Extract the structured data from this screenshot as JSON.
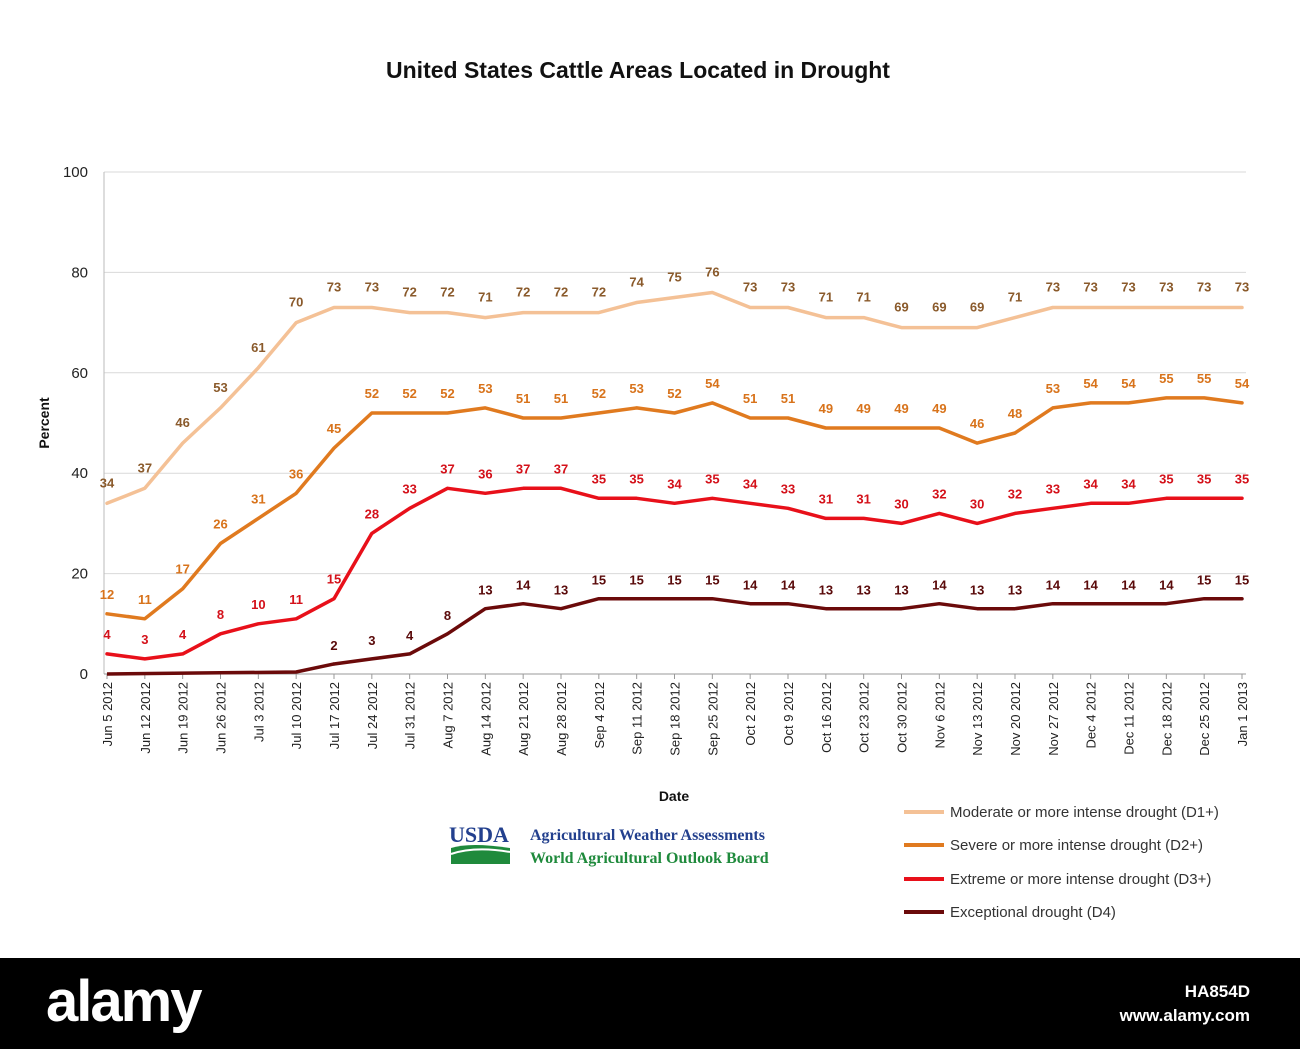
{
  "chart_data": {
    "type": "line",
    "title": "United States Cattle Areas Located in Drought",
    "xlabel": "Date",
    "ylabel": "Percent",
    "ylim": [
      0,
      100
    ],
    "yticks": [
      0,
      20,
      40,
      60,
      80,
      100
    ],
    "grid": true,
    "legend_position": "bottom-right",
    "categories": [
      "Jun 5 2012",
      "Jun 12 2012",
      "Jun 19 2012",
      "Jun 26 2012",
      "Jul 3 2012",
      "Jul 10 2012",
      "Jul 17 2012",
      "Jul 24 2012",
      "Jul 31 2012",
      "Aug 7 2012",
      "Aug 14 2012",
      "Aug 21 2012",
      "Aug 28 2012",
      "Sep 4 2012",
      "Sep 11 2012",
      "Sep 18 2012",
      "Sep 25 2012",
      "Oct 2 2012",
      "Oct 9 2012",
      "Oct 16 2012",
      "Oct 23 2012",
      "Oct 30 2012",
      "Nov 6 2012",
      "Nov 13 2012",
      "Nov 20 2012",
      "Nov 27 2012",
      "Dec 4 2012",
      "Dec 11 2012",
      "Dec 18 2012",
      "Dec 25 2012",
      "Jan 1 2013"
    ],
    "series": [
      {
        "name": "Moderate or more intense drought (D1+)",
        "color": "#f4c196",
        "values": [
          34,
          37,
          46,
          53,
          61,
          70,
          73,
          73,
          72,
          72,
          71,
          72,
          72,
          72,
          74,
          75,
          76,
          73,
          73,
          71,
          71,
          69,
          69,
          69,
          71,
          73,
          73,
          73,
          73,
          73,
          73
        ]
      },
      {
        "name": "Severe or more intense drought (D2+)",
        "color": "#e07a1f",
        "values": [
          12,
          11,
          17,
          26,
          31,
          36,
          45,
          52,
          52,
          52,
          53,
          51,
          51,
          52,
          53,
          52,
          54,
          51,
          51,
          49,
          49,
          49,
          49,
          46,
          48,
          53,
          54,
          54,
          55,
          55,
          54
        ]
      },
      {
        "name": "Extreme or more intense drought (D3+)",
        "color": "#e8101a",
        "values": [
          4,
          3,
          4,
          8,
          10,
          11,
          15,
          28,
          33,
          37,
          36,
          37,
          37,
          35,
          35,
          34,
          35,
          34,
          33,
          31,
          31,
          30,
          32,
          30,
          32,
          33,
          34,
          34,
          35,
          35,
          35
        ]
      },
      {
        "name": "Exceptional drought (D4)",
        "color": "#6b0a0a",
        "values": [
          null,
          null,
          null,
          null,
          null,
          null,
          2,
          3,
          4,
          8,
          13,
          14,
          13,
          15,
          15,
          15,
          15,
          14,
          14,
          13,
          13,
          13,
          14,
          13,
          13,
          14,
          14,
          14,
          14,
          15,
          15
        ]
      }
    ]
  },
  "logo": {
    "usda": "USDA",
    "line1": "Agricultural Weather Assessments",
    "line2": "World Agricultural Outlook Board"
  },
  "watermark": {
    "brand": "alamy",
    "code": "HA854D",
    "url": "www.alamy.com"
  }
}
